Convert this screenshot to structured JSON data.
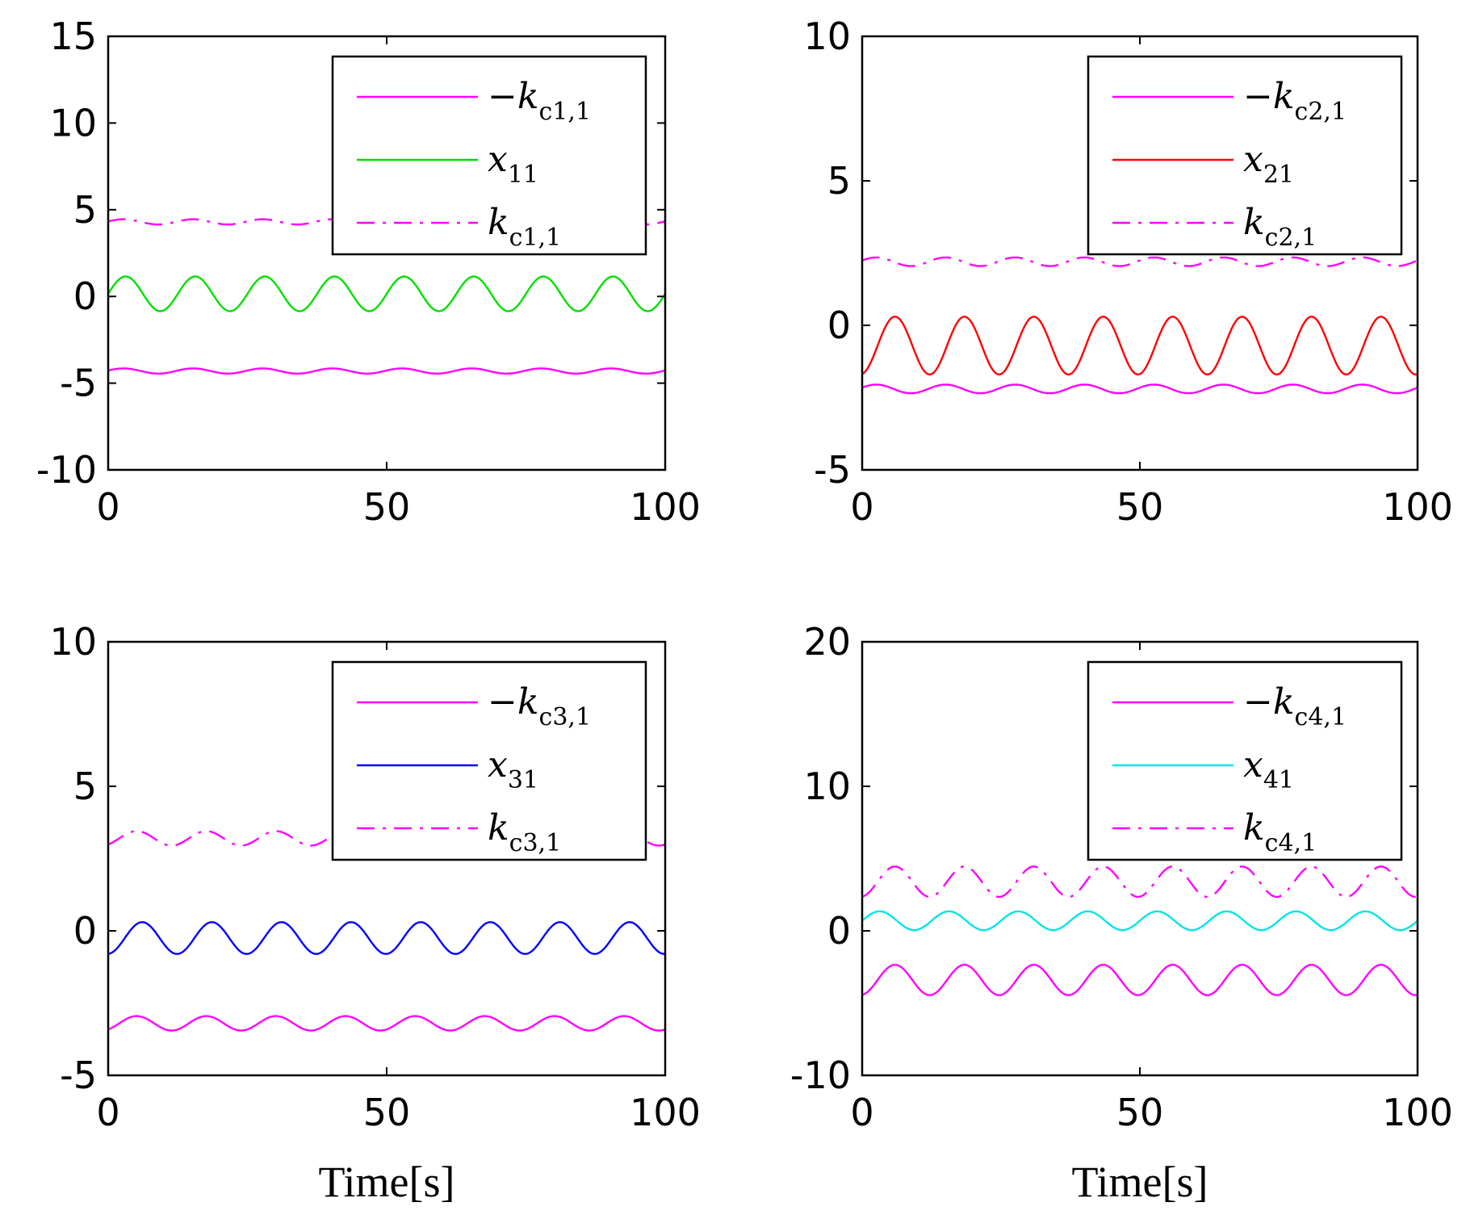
{
  "chart_data": [
    {
      "type": "line",
      "panel": "top-left",
      "xlim": [
        0,
        100
      ],
      "ylim": [
        -10,
        15
      ],
      "xticks": [
        "0",
        "50",
        "100"
      ],
      "yticks": [
        "15",
        "10",
        "5",
        "0",
        "-5",
        "-10"
      ],
      "xlabel": "",
      "legend_position": "top-right",
      "series": [
        {
          "name": "−k_{c1,1}",
          "label_main": "−k",
          "label_sub": "c1,1",
          "color": "#ff00ff",
          "style": "solid",
          "base": -4.3,
          "amp": 0.15,
          "period": 12.5,
          "phase": 0.2
        },
        {
          "name": "x_{11}",
          "label_main": "x",
          "label_sub": "11",
          "color": "#00e000",
          "style": "solid",
          "base": 0.15,
          "amp": 1.0,
          "period": 12.5,
          "phase": 0.0
        },
        {
          "name": "k_{c1,1}",
          "label_main": "k",
          "label_sub": "c1,1",
          "color": "#ff00ff",
          "style": "dashdot",
          "base": 4.3,
          "amp": 0.15,
          "period": 12.5,
          "phase": 0.2
        }
      ]
    },
    {
      "type": "line",
      "panel": "top-right",
      "xlim": [
        0,
        100
      ],
      "ylim": [
        -5,
        10
      ],
      "xticks": [
        "0",
        "50",
        "100"
      ],
      "yticks": [
        "10",
        "5",
        "0",
        "-5"
      ],
      "xlabel": "",
      "legend_position": "top-right",
      "series": [
        {
          "name": "−k_{c2,1}",
          "label_main": "−k",
          "label_sub": "c2,1",
          "color": "#ff00ff",
          "style": "solid",
          "base": -2.2,
          "amp": 0.15,
          "period": 12.5,
          "phase": 0.3
        },
        {
          "name": "x_{21}",
          "label_main": "x",
          "label_sub": "21",
          "color": "#ff0000",
          "style": "solid",
          "base": -0.7,
          "amp": 1.0,
          "period": 12.5,
          "phase": -1.4
        },
        {
          "name": "k_{c2,1}",
          "label_main": "k",
          "label_sub": "c2,1",
          "color": "#ff00ff",
          "style": "dashdot",
          "base": 2.2,
          "amp": 0.15,
          "period": 12.5,
          "phase": 0.3
        }
      ]
    },
    {
      "type": "line",
      "panel": "bottom-left",
      "xlim": [
        0,
        100
      ],
      "ylim": [
        -5,
        10
      ],
      "xticks": [
        "0",
        "50",
        "100"
      ],
      "yticks": [
        "10",
        "5",
        "0",
        "-5"
      ],
      "xlabel": "Time[s]",
      "legend_position": "top-right",
      "series": [
        {
          "name": "−k_{c3,1}",
          "label_main": "−k",
          "label_sub": "c3,1",
          "color": "#ff00ff",
          "style": "solid",
          "base": -3.2,
          "amp": 0.25,
          "period": 12.5,
          "phase": -1.0
        },
        {
          "name": "x_{31}",
          "label_main": "x",
          "label_sub": "31",
          "color": "#0000ff",
          "style": "solid",
          "base": -0.25,
          "amp": 0.55,
          "period": 12.5,
          "phase": -1.5
        },
        {
          "name": "k_{c3,1}",
          "label_main": "k",
          "label_sub": "c3,1",
          "color": "#ff00ff",
          "style": "dashdot",
          "base": 3.2,
          "amp": 0.25,
          "period": 12.5,
          "phase": -1.0
        }
      ]
    },
    {
      "type": "line",
      "panel": "bottom-right",
      "xlim": [
        0,
        100
      ],
      "ylim": [
        -10,
        20
      ],
      "xticks": [
        "0",
        "50",
        "100"
      ],
      "yticks": [
        "20",
        "10",
        "0",
        "-10"
      ],
      "xlabel": "Time[s]",
      "legend_position": "top-right",
      "series": [
        {
          "name": "−k_{c4,1}",
          "label_main": "−k",
          "label_sub": "c4,1",
          "color": "#ff00ff",
          "style": "solid",
          "base": -3.4,
          "amp": 1.05,
          "period": 12.5,
          "phase": -1.4
        },
        {
          "name": "x_{41}",
          "label_main": "x",
          "label_sub": "41",
          "color": "#00e5e5",
          "style": "solid",
          "base": 0.7,
          "amp": 0.65,
          "period": 12.5,
          "phase": 0.0
        },
        {
          "name": "k_{c4,1}",
          "label_main": "k",
          "label_sub": "c4,1",
          "color": "#ff00ff",
          "style": "dashdot",
          "base": 3.4,
          "amp": 1.05,
          "period": 12.5,
          "phase": -1.4
        }
      ]
    }
  ]
}
